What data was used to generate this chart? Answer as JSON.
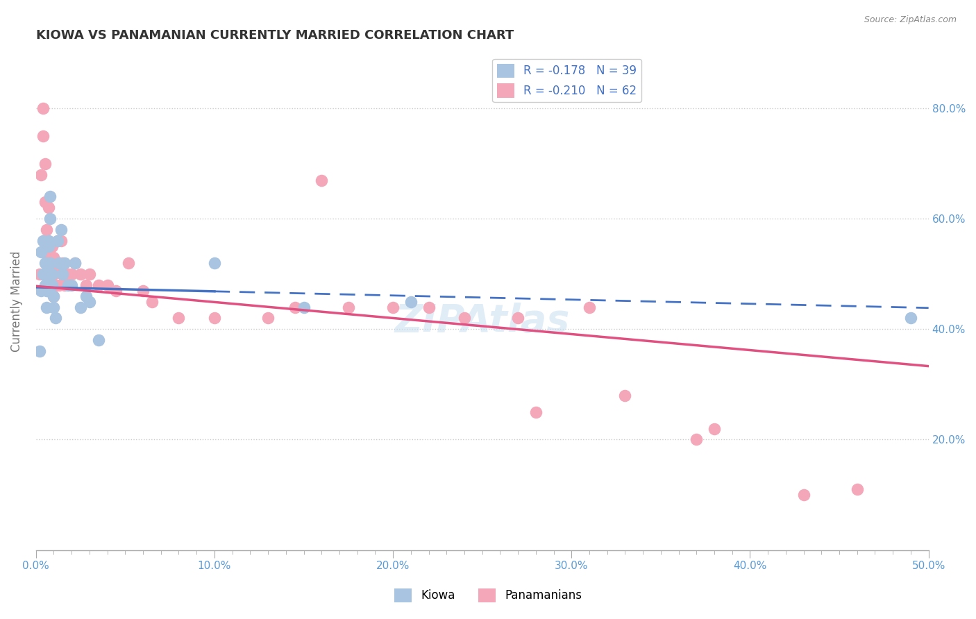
{
  "title": "KIOWA VS PANAMANIAN CURRENTLY MARRIED CORRELATION CHART",
  "source": "Source: ZipAtlas.com",
  "ylabel": "Currently Married",
  "xlim": [
    0.0,
    0.5
  ],
  "ylim": [
    0.0,
    0.9
  ],
  "xtick_labels": [
    "0.0%",
    "",
    "",
    "",
    "",
    "",
    "",
    "",
    "",
    "",
    "10.0%",
    "",
    "",
    "",
    "",
    "",
    "",
    "",
    "",
    "",
    "20.0%",
    "",
    "",
    "",
    "",
    "",
    "",
    "",
    "",
    "",
    "30.0%",
    "",
    "",
    "",
    "",
    "",
    "",
    "",
    "",
    "",
    "40.0%",
    "",
    "",
    "",
    "",
    "",
    "",
    "",
    "",
    "",
    "50.0%"
  ],
  "xtick_vals": [
    0.0,
    0.01,
    0.02,
    0.03,
    0.04,
    0.05,
    0.06,
    0.07,
    0.08,
    0.09,
    0.1,
    0.11,
    0.12,
    0.13,
    0.14,
    0.15,
    0.16,
    0.17,
    0.18,
    0.19,
    0.2,
    0.21,
    0.22,
    0.23,
    0.24,
    0.25,
    0.26,
    0.27,
    0.28,
    0.29,
    0.3,
    0.31,
    0.32,
    0.33,
    0.34,
    0.35,
    0.36,
    0.37,
    0.38,
    0.39,
    0.4,
    0.41,
    0.42,
    0.43,
    0.44,
    0.45,
    0.46,
    0.47,
    0.48,
    0.49,
    0.5
  ],
  "ytick_labels_right": [
    "20.0%",
    "40.0%",
    "60.0%",
    "80.0%"
  ],
  "ytick_vals_right": [
    0.2,
    0.4,
    0.6,
    0.8
  ],
  "kiowa_color": "#a8c4e0",
  "pana_color": "#f4a7b9",
  "kiowa_line_color": "#4472c4",
  "pana_line_color": "#e05080",
  "kiowa_R": -0.178,
  "kiowa_N": 39,
  "pana_R": -0.21,
  "pana_N": 62,
  "legend_label_kiowa": "Kiowa",
  "legend_label_pana": "Panamanians",
  "axis_color": "#5b9bd5",
  "watermark": "ZIPAtlas",
  "kiowa_intercept": 0.476,
  "kiowa_slope": -0.075,
  "pana_intercept": 0.478,
  "pana_slope": -0.29,
  "kiowa_x": [
    0.002,
    0.003,
    0.003,
    0.004,
    0.004,
    0.005,
    0.005,
    0.005,
    0.006,
    0.006,
    0.006,
    0.007,
    0.007,
    0.007,
    0.007,
    0.008,
    0.008,
    0.008,
    0.009,
    0.009,
    0.01,
    0.01,
    0.011,
    0.012,
    0.013,
    0.014,
    0.015,
    0.016,
    0.018,
    0.02,
    0.022,
    0.025,
    0.028,
    0.03,
    0.035,
    0.1,
    0.15,
    0.21,
    0.49
  ],
  "kiowa_y": [
    0.36,
    0.47,
    0.54,
    0.5,
    0.56,
    0.48,
    0.5,
    0.52,
    0.44,
    0.47,
    0.52,
    0.56,
    0.5,
    0.48,
    0.55,
    0.6,
    0.64,
    0.52,
    0.5,
    0.48,
    0.44,
    0.46,
    0.42,
    0.56,
    0.52,
    0.58,
    0.5,
    0.52,
    0.48,
    0.48,
    0.52,
    0.44,
    0.46,
    0.45,
    0.38,
    0.52,
    0.44,
    0.45,
    0.42
  ],
  "pana_x": [
    0.002,
    0.003,
    0.004,
    0.004,
    0.005,
    0.005,
    0.005,
    0.006,
    0.006,
    0.006,
    0.007,
    0.007,
    0.007,
    0.007,
    0.008,
    0.008,
    0.008,
    0.009,
    0.009,
    0.009,
    0.01,
    0.01,
    0.01,
    0.011,
    0.011,
    0.012,
    0.012,
    0.013,
    0.013,
    0.014,
    0.015,
    0.015,
    0.016,
    0.018,
    0.02,
    0.022,
    0.025,
    0.028,
    0.03,
    0.035,
    0.04,
    0.045,
    0.052,
    0.06,
    0.065,
    0.08,
    0.1,
    0.13,
    0.145,
    0.16,
    0.175,
    0.2,
    0.22,
    0.24,
    0.27,
    0.28,
    0.31,
    0.33,
    0.37,
    0.38,
    0.43,
    0.46
  ],
  "pana_y": [
    0.5,
    0.68,
    0.8,
    0.75,
    0.63,
    0.7,
    0.5,
    0.58,
    0.52,
    0.55,
    0.5,
    0.53,
    0.5,
    0.62,
    0.47,
    0.5,
    0.55,
    0.55,
    0.48,
    0.5,
    0.5,
    0.46,
    0.53,
    0.51,
    0.48,
    0.56,
    0.52,
    0.48,
    0.52,
    0.56,
    0.5,
    0.52,
    0.48,
    0.5,
    0.5,
    0.52,
    0.5,
    0.48,
    0.5,
    0.48,
    0.48,
    0.47,
    0.52,
    0.47,
    0.45,
    0.42,
    0.42,
    0.42,
    0.44,
    0.67,
    0.44,
    0.44,
    0.44,
    0.42,
    0.42,
    0.25,
    0.44,
    0.28,
    0.2,
    0.22,
    0.1,
    0.11
  ]
}
